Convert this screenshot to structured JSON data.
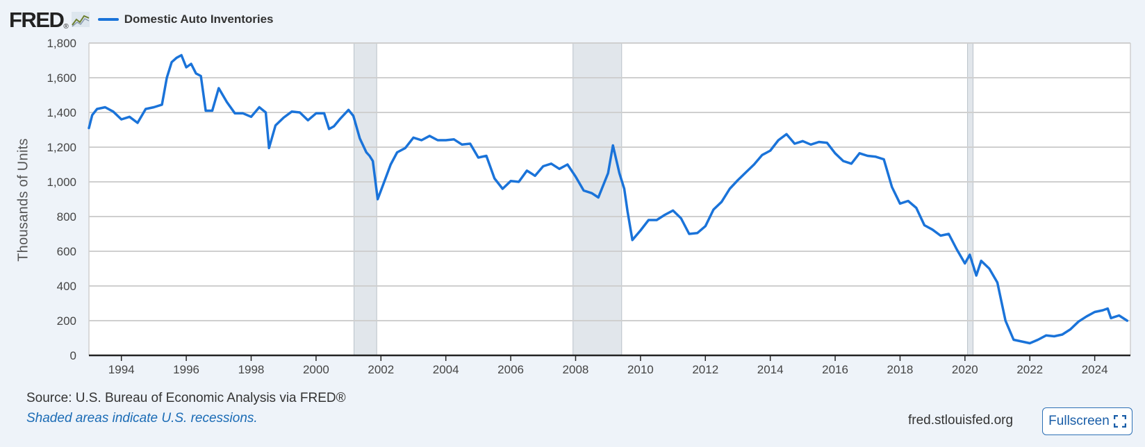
{
  "header": {
    "logo_text": "FRED",
    "logo_registered": "®",
    "legend_label": "Domestic Auto Inventories"
  },
  "footer": {
    "source": "Source: U.S. Bureau of Economic Analysis via FRED®",
    "recession_note": "Shaded areas indicate U.S. recessions.",
    "site": "fred.stlouisfed.org",
    "fullscreen_label": "Fullscreen"
  },
  "colors": {
    "series": "#1a73d9",
    "recession": "#e1e6eb",
    "background": "#eef3f9"
  },
  "icons": [
    "fred-logo-chart-icon",
    "fullscreen-icon"
  ],
  "chart_data": {
    "type": "line",
    "title": "",
    "ylabel": "Thousands of Units",
    "xlabel": "",
    "xlim": [
      1993.0,
      2025.1
    ],
    "ylim": [
      0,
      1800
    ],
    "yticks": [
      0,
      200,
      400,
      600,
      800,
      1000,
      1200,
      1400,
      1600,
      1800
    ],
    "ytick_labels": [
      "0",
      "200",
      "400",
      "600",
      "800",
      "1,000",
      "1,200",
      "1,400",
      "1,600",
      "1,800"
    ],
    "xticks": [
      1994,
      1996,
      1998,
      2000,
      2002,
      2004,
      2006,
      2008,
      2010,
      2012,
      2014,
      2016,
      2018,
      2020,
      2022,
      2024
    ],
    "xtick_labels": [
      "1994",
      "1996",
      "1998",
      "2000",
      "2002",
      "2004",
      "2006",
      "2008",
      "2010",
      "2012",
      "2014",
      "2016",
      "2018",
      "2020",
      "2022",
      "2024"
    ],
    "grid": true,
    "legend_position": "top-left",
    "recessions": [
      [
        2001.17,
        2001.87
      ],
      [
        2007.92,
        2009.42
      ],
      [
        2020.08,
        2020.25
      ]
    ],
    "series": [
      {
        "name": "Domestic Auto Inventories",
        "x": [
          1993.0,
          1993.1,
          1993.25,
          1993.5,
          1993.75,
          1994.0,
          1994.25,
          1994.5,
          1994.75,
          1995.0,
          1995.25,
          1995.4,
          1995.55,
          1995.7,
          1995.85,
          1996.0,
          1996.15,
          1996.3,
          1996.45,
          1996.6,
          1996.8,
          1997.0,
          1997.25,
          1997.5,
          1997.75,
          1998.0,
          1998.25,
          1998.45,
          1998.55,
          1998.75,
          1999.0,
          1999.25,
          1999.5,
          1999.75,
          2000.0,
          2000.25,
          2000.4,
          2000.55,
          2000.75,
          2001.0,
          2001.15,
          2001.35,
          2001.55,
          2001.65,
          2001.75,
          2001.9,
          2002.1,
          2002.3,
          2002.5,
          2002.75,
          2003.0,
          2003.25,
          2003.5,
          2003.75,
          2004.0,
          2004.25,
          2004.5,
          2004.75,
          2005.0,
          2005.25,
          2005.5,
          2005.75,
          2006.0,
          2006.25,
          2006.5,
          2006.75,
          2007.0,
          2007.25,
          2007.5,
          2007.75,
          2008.0,
          2008.25,
          2008.5,
          2008.7,
          2008.85,
          2009.0,
          2009.15,
          2009.35,
          2009.5,
          2009.6,
          2009.75,
          2010.0,
          2010.25,
          2010.5,
          2010.75,
          2011.0,
          2011.25,
          2011.5,
          2011.75,
          2012.0,
          2012.25,
          2012.5,
          2012.75,
          2013.0,
          2013.25,
          2013.5,
          2013.75,
          2014.0,
          2014.25,
          2014.5,
          2014.75,
          2015.0,
          2015.25,
          2015.5,
          2015.75,
          2016.0,
          2016.25,
          2016.5,
          2016.75,
          2017.0,
          2017.25,
          2017.5,
          2017.75,
          2018.0,
          2018.25,
          2018.5,
          2018.75,
          2019.0,
          2019.25,
          2019.5,
          2019.75,
          2020.0,
          2020.15,
          2020.35,
          2020.5,
          2020.75,
          2021.0,
          2021.25,
          2021.5,
          2021.75,
          2022.0,
          2022.25,
          2022.5,
          2022.75,
          2023.0,
          2023.25,
          2023.5,
          2023.75,
          2024.0,
          2024.25,
          2024.4,
          2024.5,
          2024.75,
          2025.0
        ],
        "values": [
          1310,
          1385,
          1420,
          1430,
          1405,
          1360,
          1375,
          1340,
          1420,
          1430,
          1445,
          1600,
          1690,
          1715,
          1730,
          1660,
          1680,
          1625,
          1610,
          1410,
          1410,
          1540,
          1460,
          1395,
          1395,
          1375,
          1430,
          1400,
          1195,
          1325,
          1370,
          1405,
          1400,
          1355,
          1395,
          1395,
          1305,
          1320,
          1365,
          1415,
          1380,
          1250,
          1170,
          1150,
          1120,
          900,
          1000,
          1100,
          1170,
          1195,
          1255,
          1240,
          1265,
          1240,
          1240,
          1245,
          1215,
          1220,
          1140,
          1150,
          1020,
          960,
          1005,
          1000,
          1065,
          1035,
          1090,
          1105,
          1075,
          1100,
          1030,
          950,
          935,
          910,
          980,
          1050,
          1210,
          1050,
          960,
          830,
          665,
          720,
          780,
          780,
          810,
          835,
          790,
          700,
          705,
          745,
          840,
          885,
          960,
          1010,
          1055,
          1100,
          1155,
          1180,
          1240,
          1275,
          1220,
          1235,
          1215,
          1230,
          1225,
          1165,
          1120,
          1105,
          1165,
          1150,
          1145,
          1130,
          970,
          875,
          890,
          850,
          750,
          725,
          690,
          700,
          610,
          530,
          580,
          460,
          545,
          500,
          420,
          200,
          90,
          80,
          70,
          90,
          115,
          110,
          120,
          150,
          195,
          225,
          250,
          260,
          270,
          215,
          230,
          200
        ]
      }
    ]
  }
}
